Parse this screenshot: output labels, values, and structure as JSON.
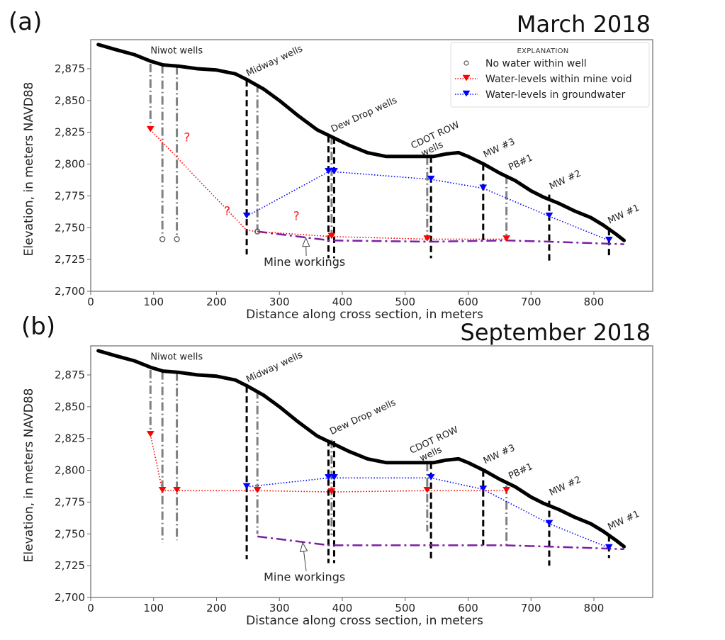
{
  "figure": {
    "panels": [
      "(a)",
      "(b)"
    ]
  },
  "chart_data": [
    {
      "type": "line",
      "panel_label": "(a)",
      "title": "March 2018",
      "xlabel": "Distance along cross section, in meters",
      "ylabel": "Elevation, in meters NAVD88",
      "xlim": [
        0,
        890
      ],
      "ylim": [
        2700,
        2898
      ],
      "x_ticks": [
        0,
        100,
        200,
        300,
        400,
        500,
        600,
        700,
        800
      ],
      "x_tick_labels": [
        "0",
        "100",
        "200",
        "300",
        "400",
        "500",
        "600",
        "700",
        "800"
      ],
      "y_ticks": [
        2700,
        2725,
        2750,
        2775,
        2800,
        2825,
        2850,
        2875
      ],
      "y_tick_labels": [
        "2,700",
        "2,725",
        "2,750",
        "2,775",
        "2,800",
        "2,825",
        "2,850",
        "2,875"
      ],
      "grid": false,
      "legend": {
        "title": "EXPLANATION",
        "placement": "top-right",
        "entries": [
          {
            "label": "No water within well",
            "marker": "open-circle",
            "color": "#555555"
          },
          {
            "label": "Water-levels within mine void",
            "marker": "triangle-down",
            "color": "#ff0000",
            "linestyle": "dotted"
          },
          {
            "label": "Water-levels in groundwater",
            "marker": "triangle-down",
            "color": "#0000ff",
            "linestyle": "dotted"
          }
        ]
      },
      "ground_surface": {
        "name": "Ground surface",
        "color": "#000000",
        "x": [
          12,
          40,
          70,
          95,
          115,
          140,
          170,
          200,
          230,
          250,
          275,
          300,
          330,
          360,
          385,
          410,
          440,
          470,
          500,
          530,
          545,
          565,
          585,
          600,
          625,
          650,
          675,
          700,
          720,
          745,
          770,
          795,
          815,
          835,
          848
        ],
        "y": [
          2894,
          2890,
          2886,
          2881,
          2878,
          2877,
          2875,
          2874,
          2871,
          2866,
          2859,
          2850,
          2838,
          2827,
          2821,
          2815,
          2809,
          2806,
          2806,
          2806,
          2806,
          2808,
          2809,
          2806,
          2800,
          2793,
          2787,
          2779,
          2774,
          2769,
          2763,
          2758,
          2752,
          2745,
          2740
        ]
      },
      "mine_workings": {
        "name": "Mine workings",
        "color": "#7b1fa2",
        "linestyle": "dashdot",
        "x": [
          265,
          380,
          540,
          660,
          730,
          848
        ],
        "y": [
          2747,
          2740,
          2739,
          2740,
          2739,
          2737
        ]
      },
      "wells": [
        {
          "group": "Niwot wells",
          "x": 95,
          "top": 2879,
          "bottom": 2828,
          "style": "gray-dashdot"
        },
        {
          "group": "Niwot wells",
          "x": 114,
          "top": 2878,
          "bottom": 2744,
          "style": "gray-dashdot"
        },
        {
          "group": "Niwot wells",
          "x": 137,
          "top": 2877,
          "bottom": 2744,
          "style": "gray-dashdot"
        },
        {
          "group": "Midway wells",
          "x": 248,
          "top": 2866,
          "bottom": 2729,
          "style": "black-dashed"
        },
        {
          "group": "Midway wells",
          "x": 265,
          "top": 2863,
          "bottom": 2748,
          "style": "gray-dashdot"
        },
        {
          "group": "Dew Drop wells",
          "x": 378,
          "top": 2822,
          "bottom": 2726,
          "style": "black-dashed"
        },
        {
          "group": "Dew Drop wells",
          "x": 383,
          "top": 2822,
          "bottom": 2745,
          "style": "gray-dashdot"
        },
        {
          "group": "Dew Drop wells",
          "x": 387,
          "top": 2821,
          "bottom": 2726,
          "style": "black-dashed"
        },
        {
          "group": "CDOT ROW wells",
          "x": 535,
          "top": 2806,
          "bottom": 2743,
          "style": "gray-dashdot"
        },
        {
          "group": "CDOT ROW wells",
          "x": 541,
          "top": 2806,
          "bottom": 2726,
          "style": "black-dashed"
        },
        {
          "group": "MW #3",
          "x": 624,
          "top": 2800,
          "bottom": 2740,
          "style": "black-dashed"
        },
        {
          "group": "PB#1",
          "x": 661,
          "top": 2791,
          "bottom": 2741,
          "style": "gray-dashdot"
        },
        {
          "group": "MW #2",
          "x": 729,
          "top": 2776,
          "bottom": 2724,
          "style": "black-dashed"
        },
        {
          "group": "MW #1",
          "x": 824,
          "top": 2749,
          "bottom": 2728,
          "style": "black-dashed"
        }
      ],
      "well_labels": [
        {
          "text": "Niwot wells",
          "x": 95,
          "y": 2887,
          "rotation": 0
        },
        {
          "text": "Midway wells",
          "x": 250,
          "y": 2869,
          "rotation": -25
        },
        {
          "text": "Dew Drop wells",
          "x": 385,
          "y": 2825,
          "rotation": -25
        },
        {
          "text": "CDOT ROW",
          "x": 512,
          "y": 2812,
          "rotation": -25
        },
        {
          "text": "wells",
          "x": 528,
          "y": 2806,
          "rotation": -25
        },
        {
          "text": "MW #3",
          "x": 627,
          "y": 2805,
          "rotation": -25
        },
        {
          "text": "PB#1",
          "x": 667,
          "y": 2795,
          "rotation": -25
        },
        {
          "text": "MW #2",
          "x": 732,
          "y": 2780,
          "rotation": -25
        },
        {
          "text": "MW #1",
          "x": 825,
          "y": 2753,
          "rotation": -25
        }
      ],
      "series": [
        {
          "name": "Water-levels within mine void",
          "color": "#ff0000",
          "marker": "triangle-down",
          "x": [
            95,
            248,
            265,
            383,
            535,
            661
          ],
          "y": [
            2827,
            2748,
            2747,
            2743,
            2741,
            2741
          ],
          "markers_at": [
            0,
            3,
            4,
            5
          ]
        },
        {
          "name": "Water-levels in groundwater",
          "color": "#0000ff",
          "marker": "triangle-down",
          "x": [
            248,
            378,
            387,
            541,
            624,
            729,
            824
          ],
          "y": [
            2759,
            2794,
            2794,
            2788,
            2781,
            2759,
            2740
          ]
        },
        {
          "name": "No water within well",
          "color": "#555555",
          "marker": "open-circle",
          "x": [
            114,
            137,
            265
          ],
          "y": [
            2741,
            2741,
            2747
          ]
        }
      ],
      "annotations": [
        {
          "text": "Mine workings",
          "x": 275,
          "y": 2720,
          "arrow_to": [
            342,
            2742
          ]
        },
        {
          "text": "?",
          "x": 148,
          "y": 2818,
          "color": "#ff0000"
        },
        {
          "text": "?",
          "x": 212,
          "y": 2760,
          "color": "#ff0000"
        },
        {
          "text": "?",
          "x": 322,
          "y": 2756,
          "color": "#ff0000"
        }
      ]
    },
    {
      "type": "line",
      "panel_label": "(b)",
      "title": "September 2018",
      "xlabel": "Distance along cross section, in meters",
      "ylabel": "Elevation, in meters NAVD88",
      "xlim": [
        0,
        890
      ],
      "ylim": [
        2700,
        2898
      ],
      "x_ticks": [
        0,
        100,
        200,
        300,
        400,
        500,
        600,
        700,
        800
      ],
      "x_tick_labels": [
        "0",
        "100",
        "200",
        "300",
        "400",
        "500",
        "600",
        "700",
        "800"
      ],
      "y_ticks": [
        2700,
        2725,
        2750,
        2775,
        2800,
        2825,
        2850,
        2875
      ],
      "y_tick_labels": [
        "2,700",
        "2,725",
        "2,750",
        "2,775",
        "2,800",
        "2,825",
        "2,850",
        "2,875"
      ],
      "grid": false,
      "ground_surface": {
        "name": "Ground surface",
        "color": "#000000",
        "x": [
          12,
          40,
          70,
          95,
          115,
          140,
          170,
          200,
          230,
          250,
          275,
          300,
          330,
          360,
          385,
          410,
          440,
          470,
          500,
          530,
          545,
          565,
          585,
          600,
          625,
          650,
          675,
          700,
          720,
          745,
          770,
          795,
          815,
          835,
          848
        ],
        "y": [
          2894,
          2890,
          2886,
          2881,
          2878,
          2877,
          2875,
          2874,
          2871,
          2866,
          2859,
          2850,
          2838,
          2827,
          2821,
          2815,
          2809,
          2806,
          2806,
          2806,
          2806,
          2808,
          2809,
          2806,
          2800,
          2793,
          2787,
          2779,
          2774,
          2769,
          2763,
          2758,
          2752,
          2745,
          2740
        ]
      },
      "mine_workings": {
        "name": "Mine workings",
        "color": "#7b1fa2",
        "linestyle": "dashdot",
        "x": [
          265,
          380,
          540,
          660,
          730,
          848
        ],
        "y": [
          2748,
          2741,
          2741,
          2741,
          2740,
          2738
        ]
      },
      "wells": [
        {
          "group": "Niwot wells",
          "x": 95,
          "top": 2879,
          "bottom": 2829,
          "style": "gray-dashdot"
        },
        {
          "group": "Niwot wells",
          "x": 114,
          "top": 2878,
          "bottom": 2743,
          "style": "gray-dashdot"
        },
        {
          "group": "Niwot wells",
          "x": 137,
          "top": 2877,
          "bottom": 2745,
          "style": "gray-dashdot"
        },
        {
          "group": "Midway wells",
          "x": 248,
          "top": 2866,
          "bottom": 2730,
          "style": "black-dashed"
        },
        {
          "group": "Midway wells",
          "x": 265,
          "top": 2863,
          "bottom": 2750,
          "style": "gray-dashdot"
        },
        {
          "group": "Dew Drop wells",
          "x": 378,
          "top": 2824,
          "bottom": 2727,
          "style": "black-dashed"
        },
        {
          "group": "Dew Drop wells",
          "x": 383,
          "top": 2824,
          "bottom": 2749,
          "style": "gray-dashdot"
        },
        {
          "group": "Dew Drop wells",
          "x": 387,
          "top": 2823,
          "bottom": 2727,
          "style": "black-dashed"
        },
        {
          "group": "CDOT ROW wells",
          "x": 535,
          "top": 2806,
          "bottom": 2752,
          "style": "gray-dashdot"
        },
        {
          "group": "CDOT ROW wells",
          "x": 541,
          "top": 2806,
          "bottom": 2728,
          "style": "black-dashed"
        },
        {
          "group": "MW #3",
          "x": 624,
          "top": 2800,
          "bottom": 2741,
          "style": "black-dashed"
        },
        {
          "group": "PB#1",
          "x": 661,
          "top": 2788,
          "bottom": 2740,
          "style": "gray-dashdot"
        },
        {
          "group": "MW #2",
          "x": 729,
          "top": 2776,
          "bottom": 2725,
          "style": "black-dashed"
        },
        {
          "group": "MW #1",
          "x": 824,
          "top": 2749,
          "bottom": 2731,
          "style": "black-dashed"
        }
      ],
      "well_labels": [
        {
          "text": "Niwot wells",
          "x": 95,
          "y": 2887,
          "rotation": 0
        },
        {
          "text": "Midway wells",
          "x": 250,
          "y": 2869,
          "rotation": -25
        },
        {
          "text": "Dew Drop wells",
          "x": 383,
          "y": 2828,
          "rotation": -25
        },
        {
          "text": "CDOT ROW",
          "x": 510,
          "y": 2813,
          "rotation": -25
        },
        {
          "text": "wells",
          "x": 526,
          "y": 2807,
          "rotation": -25
        },
        {
          "text": "MW #3",
          "x": 627,
          "y": 2805,
          "rotation": -25
        },
        {
          "text": "PB#1",
          "x": 667,
          "y": 2793,
          "rotation": -25
        },
        {
          "text": "MW #2",
          "x": 732,
          "y": 2780,
          "rotation": -25
        },
        {
          "text": "MW #1",
          "x": 825,
          "y": 2753,
          "rotation": -25
        }
      ],
      "series": [
        {
          "name": "Water-levels within mine void",
          "color": "#ff0000",
          "marker": "triangle-down",
          "x": [
            95,
            114,
            137,
            265,
            383,
            535,
            661
          ],
          "y": [
            2828,
            2784,
            2784,
            2784,
            2783,
            2784,
            2784
          ]
        },
        {
          "name": "Water-levels in groundwater",
          "color": "#0000ff",
          "marker": "triangle-down",
          "x": [
            248,
            378,
            387,
            541,
            624,
            729,
            824
          ],
          "y": [
            2787,
            2794,
            2794,
            2794,
            2785,
            2758,
            2739
          ]
        }
      ],
      "annotations": [
        {
          "text": "Mine workings",
          "x": 275,
          "y": 2713,
          "arrow_to": [
            337,
            2743
          ]
        }
      ]
    }
  ]
}
